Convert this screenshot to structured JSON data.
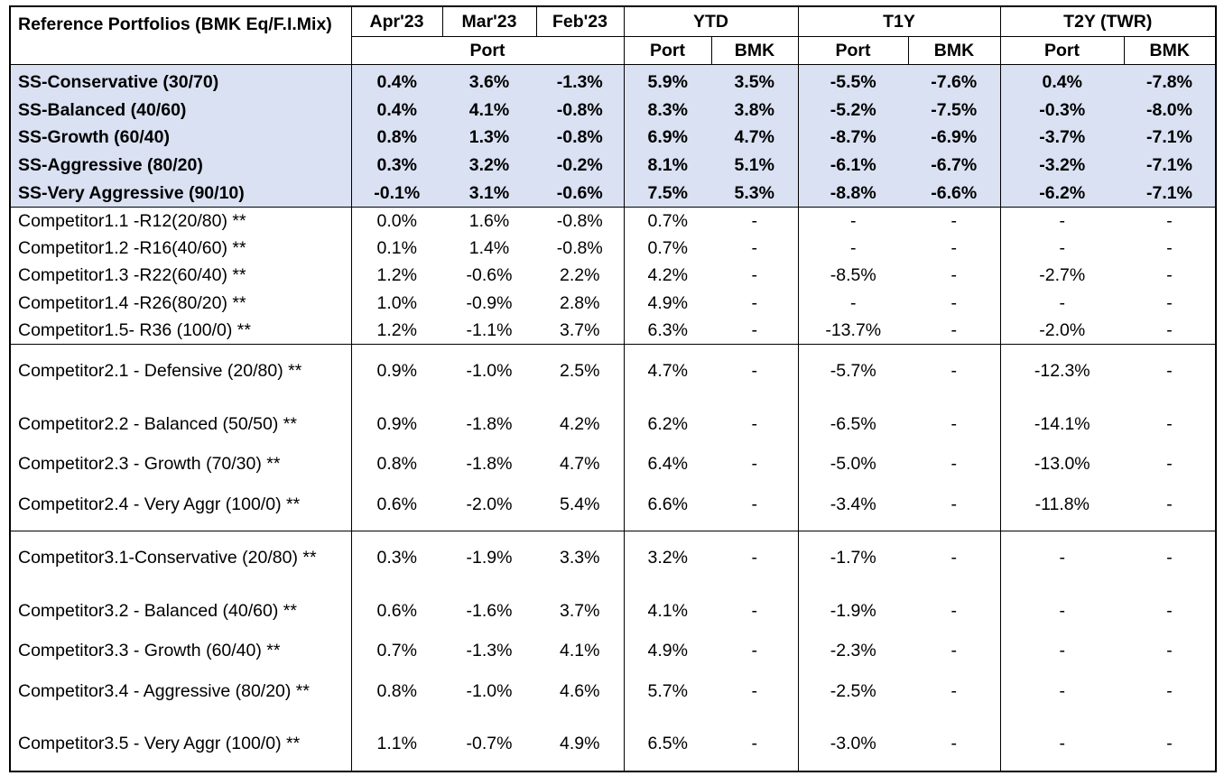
{
  "table": {
    "header": {
      "name_label": "Reference Portfolios (BMK Eq/F.I.Mix)",
      "months": [
        "Apr'23",
        "Mar'23",
        "Feb'23"
      ],
      "month_sub": "Port",
      "ytd_label": "YTD",
      "t1y_label": "T1Y",
      "t2y_label": "T2Y (TWR)",
      "port_label": "Port",
      "bmk_label": "BMK"
    },
    "ss_rows": [
      {
        "name": "SS-Conservative (30/70)",
        "values": [
          "0.4%",
          "3.6%",
          "-1.3%",
          "5.9%",
          "3.5%",
          "-5.5%",
          "-7.6%",
          "0.4%",
          "-7.8%"
        ]
      },
      {
        "name": "SS-Balanced (40/60)",
        "values": [
          "0.4%",
          "4.1%",
          "-0.8%",
          "8.3%",
          "3.8%",
          "-5.2%",
          "-7.5%",
          "-0.3%",
          "-8.0%"
        ]
      },
      {
        "name": "SS-Growth (60/40)",
        "values": [
          "0.8%",
          "1.3%",
          "-0.8%",
          "6.9%",
          "4.7%",
          "-8.7%",
          "-6.9%",
          "-3.7%",
          "-7.1%"
        ]
      },
      {
        "name": "SS-Aggressive (80/20)",
        "values": [
          "0.3%",
          "3.2%",
          "-0.2%",
          "8.1%",
          "5.1%",
          "-6.1%",
          "-6.7%",
          "-3.2%",
          "-7.1%"
        ]
      },
      {
        "name": "SS-Very Aggressive (90/10)",
        "values": [
          "-0.1%",
          "3.1%",
          "-0.6%",
          "7.5%",
          "5.3%",
          "-8.8%",
          "-6.6%",
          "-6.2%",
          "-7.1%"
        ]
      }
    ],
    "competitor1_rows": [
      {
        "name": "Competitor1.1 -R12(20/80) **",
        "values": [
          "0.0%",
          "1.6%",
          "-0.8%",
          "0.7%",
          "-",
          "-",
          "-",
          "-",
          "-"
        ]
      },
      {
        "name": "Competitor1.2 -R16(40/60) **",
        "values": [
          "0.1%",
          "1.4%",
          "-0.8%",
          "0.7%",
          "-",
          "-",
          "-",
          "-",
          "-"
        ]
      },
      {
        "name": "Competitor1.3 -R22(60/40) **",
        "values": [
          "1.2%",
          "-0.6%",
          "2.2%",
          "4.2%",
          "-",
          "-8.5%",
          "-",
          "-2.7%",
          "-"
        ]
      },
      {
        "name": "Competitor1.4 -R26(80/20) **",
        "values": [
          "1.0%",
          "-0.9%",
          "2.8%",
          "4.9%",
          "-",
          "-",
          "-",
          "-",
          "-"
        ]
      },
      {
        "name": "Competitor1.5- R36 (100/0) **",
        "values": [
          "1.2%",
          "-1.1%",
          "3.7%",
          "6.3%",
          "-",
          "-13.7%",
          "-",
          "-2.0%",
          "-"
        ]
      }
    ],
    "competitor2_rows": [
      {
        "name": "Competitor2.1  - Defensive  (20/80) **",
        "values": [
          "0.9%",
          "-1.0%",
          "2.5%",
          "4.7%",
          "-",
          "-5.7%",
          "-",
          "-12.3%",
          "-"
        ]
      },
      {
        "name": "Competitor2.2  - Balanced (50/50) **",
        "values": [
          "0.9%",
          "-1.8%",
          "4.2%",
          "6.2%",
          "-",
          "-6.5%",
          "-",
          "-14.1%",
          "-"
        ]
      },
      {
        "name": "Competitor2.3  - Growth  (70/30) **",
        "values": [
          "0.8%",
          "-1.8%",
          "4.7%",
          "6.4%",
          "-",
          "-5.0%",
          "-",
          "-13.0%",
          "-"
        ]
      },
      {
        "name": "Competitor2.4  - Very Aggr  (100/0) **",
        "values": [
          "0.6%",
          "-2.0%",
          "5.4%",
          "6.6%",
          "-",
          "-3.4%",
          "-",
          "-11.8%",
          "-"
        ]
      }
    ],
    "competitor3_rows": [
      {
        "name": "Competitor3.1-Conservative (20/80) **",
        "values": [
          "0.3%",
          "-1.9%",
          "3.3%",
          "3.2%",
          "-",
          "-1.7%",
          "-",
          "-",
          "-"
        ]
      },
      {
        "name": "Competitor3.2 - Balanced  (40/60) **",
        "values": [
          "0.6%",
          "-1.6%",
          "3.7%",
          "4.1%",
          "-",
          "-1.9%",
          "-",
          "-",
          "-"
        ]
      },
      {
        "name": "Competitor3.3 - Growth  (60/40) **",
        "values": [
          "0.7%",
          "-1.3%",
          "4.1%",
          "4.9%",
          "-",
          "-2.3%",
          "-",
          "-",
          "-"
        ]
      },
      {
        "name": "Competitor3.4 - Aggressive  (80/20) **",
        "values": [
          "0.8%",
          "-1.0%",
          "4.6%",
          "5.7%",
          "-",
          "-2.5%",
          "-",
          "-",
          "-"
        ]
      },
      {
        "name": "Competitor3.5  - Very Aggr (100/0) **",
        "values": [
          "1.1%",
          "-0.7%",
          "4.9%",
          "6.5%",
          "-",
          "-3.0%",
          "-",
          "-",
          "-"
        ]
      }
    ]
  },
  "colors": {
    "ss_highlight": "#d9e1f2",
    "border": "#000000"
  }
}
